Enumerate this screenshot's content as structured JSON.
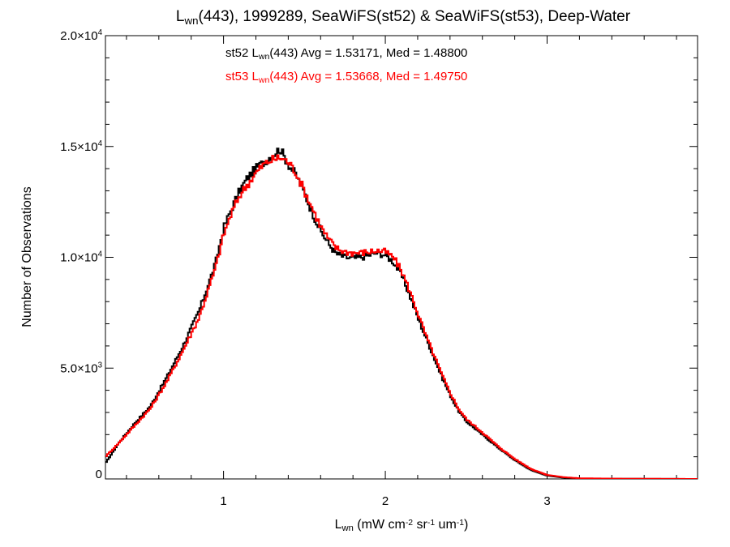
{
  "chart_data": {
    "type": "line",
    "step": true,
    "title": {
      "parts": [
        {
          "text": "L",
          "kind": "normal"
        },
        {
          "text": "wn",
          "kind": "sub"
        },
        {
          "text": "(443), 1999289, SeaWiFS(st52) & SeaWiFS(st53), Deep-Water",
          "kind": "normal"
        }
      ]
    },
    "xlabel": {
      "parts": [
        {
          "text": "L",
          "kind": "normal"
        },
        {
          "text": "wn",
          "kind": "sub"
        },
        {
          "text": " (mW cm",
          "kind": "normal"
        },
        {
          "text": "-2",
          "kind": "sup"
        },
        {
          "text": " sr",
          "kind": "normal"
        },
        {
          "text": "-1",
          "kind": "sup"
        },
        {
          "text": " um",
          "kind": "normal"
        },
        {
          "text": "-1",
          "kind": "sup"
        },
        {
          "text": ")",
          "kind": "normal"
        }
      ]
    },
    "ylabel": "Number of Observations",
    "xlim": [
      0.27,
      3.93
    ],
    "ylim": [
      0,
      20000
    ],
    "x_ticks": [
      {
        "value": 1,
        "label": "1"
      },
      {
        "value": 2,
        "label": "2"
      },
      {
        "value": 3,
        "label": "3"
      }
    ],
    "y_ticks": [
      {
        "value": 0,
        "mantissa": "0",
        "exp": ""
      },
      {
        "value": 5000,
        "mantissa": "5.0×10",
        "exp": "3"
      },
      {
        "value": 10000,
        "mantissa": "1.0×10",
        "exp": "4"
      },
      {
        "value": 15000,
        "mantissa": "1.5×10",
        "exp": "4"
      },
      {
        "value": 20000,
        "mantissa": "2.0×10",
        "exp": "4"
      }
    ],
    "grid": false,
    "series": [
      {
        "name": "st52",
        "color": "#000000",
        "stats": {
          "parts": [
            {
              "text": "st52 L",
              "kind": "normal"
            },
            {
              "text": "wn",
              "kind": "sub"
            },
            {
              "text": "(443) Avg = 1.53171, Med = 1.48800",
              "kind": "normal"
            }
          ]
        },
        "x": [
          0.27,
          0.35,
          0.45,
          0.55,
          0.65,
          0.75,
          0.85,
          0.95,
          1.0,
          1.05,
          1.1,
          1.15,
          1.2,
          1.25,
          1.3,
          1.35,
          1.4,
          1.45,
          1.5,
          1.55,
          1.6,
          1.65,
          1.7,
          1.75,
          1.8,
          1.85,
          1.9,
          1.95,
          2.0,
          2.05,
          2.1,
          2.15,
          2.2,
          2.25,
          2.3,
          2.35,
          2.4,
          2.45,
          2.5,
          2.6,
          2.7,
          2.8,
          2.9,
          3.0,
          3.1,
          3.2,
          3.4,
          3.6,
          3.93
        ],
        "y": [
          700,
          1600,
          2500,
          3300,
          4600,
          6000,
          7600,
          9700,
          11300,
          12200,
          13000,
          13600,
          14000,
          14300,
          14600,
          14900,
          14200,
          13700,
          12900,
          12000,
          11200,
          10600,
          10150,
          10000,
          9950,
          10000,
          10100,
          10200,
          10100,
          9800,
          9200,
          8300,
          7300,
          6400,
          5500,
          4600,
          3800,
          3100,
          2600,
          2000,
          1400,
          850,
          400,
          150,
          60,
          20,
          10,
          5,
          0
        ]
      },
      {
        "name": "st53",
        "color": "#ff0000",
        "stats": {
          "parts": [
            {
              "text": "st53 L",
              "kind": "normal"
            },
            {
              "text": "wn",
              "kind": "sub"
            },
            {
              "text": "(443) Avg = 1.53668, Med = 1.49750",
              "kind": "normal"
            }
          ]
        },
        "x": [
          0.27,
          0.35,
          0.45,
          0.55,
          0.65,
          0.75,
          0.85,
          0.95,
          1.0,
          1.05,
          1.1,
          1.15,
          1.2,
          1.25,
          1.3,
          1.35,
          1.4,
          1.45,
          1.5,
          1.55,
          1.6,
          1.65,
          1.7,
          1.75,
          1.8,
          1.85,
          1.9,
          1.95,
          2.0,
          2.05,
          2.1,
          2.15,
          2.2,
          2.25,
          2.3,
          2.35,
          2.4,
          2.45,
          2.5,
          2.6,
          2.7,
          2.8,
          2.9,
          3.0,
          3.1,
          3.2,
          3.4,
          3.6,
          3.93
        ],
        "y": [
          1000,
          1600,
          2400,
          3200,
          4400,
          5800,
          7300,
          9500,
          11000,
          12000,
          12800,
          13300,
          13800,
          14200,
          14400,
          14500,
          14300,
          13800,
          13000,
          12200,
          11400,
          10800,
          10400,
          10250,
          10200,
          10200,
          10250,
          10300,
          10250,
          10000,
          9400,
          8500,
          7500,
          6500,
          5600,
          4700,
          3900,
          3200,
          2700,
          2100,
          1450,
          900,
          450,
          180,
          80,
          30,
          15,
          8,
          0
        ]
      }
    ]
  }
}
